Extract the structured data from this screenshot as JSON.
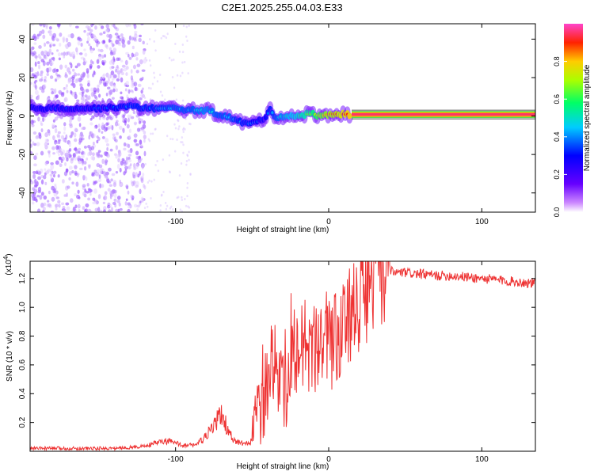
{
  "title": "C2E1.2025.255.04.03.E33",
  "chart_data": [
    {
      "type": "heatmap",
      "title": "C2E1.2025.255.04.03.E33",
      "xlabel": "Height of straight line (km)",
      "ylabel": "Frequency (Hz)",
      "xlim": [
        -195,
        135
      ],
      "ylim": [
        -50,
        48
      ],
      "x_ticks": [
        {
          "v": -100,
          "label": "-100"
        },
        {
          "v": 0,
          "label": "0"
        },
        {
          "v": 100,
          "label": "100"
        }
      ],
      "y_ticks": [
        {
          "v": 40,
          "label": "40"
        },
        {
          "v": 20,
          "label": "20"
        },
        {
          "v": 0,
          "label": "0"
        },
        {
          "v": -20,
          "label": "-20"
        },
        {
          "v": -40,
          "label": "-40"
        }
      ],
      "colorbar": {
        "label": "Normalized spectral amplitude",
        "range": [
          0,
          1
        ],
        "ticks": [
          {
            "v": 0.0,
            "label": "0.0"
          },
          {
            "v": 0.2,
            "label": "0.2"
          },
          {
            "v": 0.4,
            "label": "0.4"
          },
          {
            "v": 0.6,
            "label": "0.6"
          },
          {
            "v": 0.8,
            "label": "0.8"
          }
        ],
        "colors": [
          "#ffffff",
          "#8800ff",
          "#0000ff",
          "#00ffff",
          "#00ff00",
          "#ffff00",
          "#ff0000",
          "#ff00ff"
        ]
      },
      "ridge": {
        "x": [
          -195,
          -170,
          -150,
          -130,
          -115,
          -100,
          -90,
          -80,
          -72,
          -64,
          -58,
          -52,
          -47,
          -42,
          -38,
          -34,
          -30,
          -25,
          -20,
          -15,
          -10,
          -5,
          0,
          5,
          10,
          15,
          135
        ],
        "freq": [
          4,
          4,
          4,
          5,
          4,
          4,
          3,
          3,
          1,
          -1,
          -3,
          -4,
          -3,
          -1,
          3,
          -1,
          0,
          0,
          0,
          1,
          1,
          0,
          1,
          1,
          1,
          0.8,
          0.8
        ],
        "amplitude": [
          0.35,
          0.35,
          0.35,
          0.4,
          0.4,
          0.45,
          0.45,
          0.5,
          0.45,
          0.45,
          0.4,
          0.4,
          0.35,
          0.35,
          0.4,
          0.45,
          0.5,
          0.55,
          0.6,
          0.65,
          0.7,
          0.8,
          0.85,
          0.9,
          0.95,
          1.0,
          1.0
        ]
      },
      "noise_region_x": [
        -195,
        -120
      ]
    },
    {
      "type": "line",
      "xlabel": "Height of straight line (km)",
      "ylabel": "SNR (10 * v/v)",
      "y_multiplier": "(x10",
      "y_multiplier_exp": "4",
      "y_multiplier_close": ")",
      "xlim": [
        -195,
        135
      ],
      "ylim": [
        0,
        1.32
      ],
      "x_ticks": [
        {
          "v": -100,
          "label": "-100"
        },
        {
          "v": 0,
          "label": "0"
        },
        {
          "v": 100,
          "label": "100"
        }
      ],
      "y_ticks": [
        {
          "v": 0.2,
          "label": "0.2"
        },
        {
          "v": 0.4,
          "label": "0.4"
        },
        {
          "v": 0.6,
          "label": "0.6"
        },
        {
          "v": 0.8,
          "label": "0.8"
        },
        {
          "v": 1.0,
          "label": "1.0"
        },
        {
          "v": 1.2,
          "label": "1.2"
        }
      ],
      "color": "#ee3333",
      "series": [
        {
          "name": "SNR",
          "x": [
            -195,
            -180,
            -160,
            -140,
            -125,
            -118,
            -112,
            -105,
            -98,
            -92,
            -86,
            -80,
            -75,
            -70,
            -66,
            -62,
            -58,
            -54,
            -50,
            -46,
            -42,
            -38,
            -35,
            -32,
            -28,
            -25,
            -22,
            -18,
            -14,
            -10,
            -6,
            -2,
            2,
            6,
            10,
            14,
            18,
            22,
            26,
            30,
            35,
            40,
            45,
            50,
            60,
            70,
            80,
            90,
            100,
            110,
            120,
            130,
            135
          ],
          "y": [
            0.02,
            0.02,
            0.02,
            0.02,
            0.03,
            0.04,
            0.06,
            0.07,
            0.05,
            0.04,
            0.05,
            0.1,
            0.18,
            0.26,
            0.15,
            0.07,
            0.06,
            0.05,
            0.07,
            0.2,
            0.38,
            0.55,
            0.6,
            0.45,
            0.4,
            0.65,
            0.7,
            0.72,
            0.65,
            0.7,
            0.66,
            0.78,
            0.74,
            0.82,
            0.85,
            0.92,
            1.0,
            1.08,
            1.15,
            1.2,
            1.23,
            1.25,
            1.24,
            1.24,
            1.23,
            1.22,
            1.22,
            1.21,
            1.2,
            1.19,
            1.18,
            1.17,
            1.17
          ]
        }
      ]
    }
  ]
}
